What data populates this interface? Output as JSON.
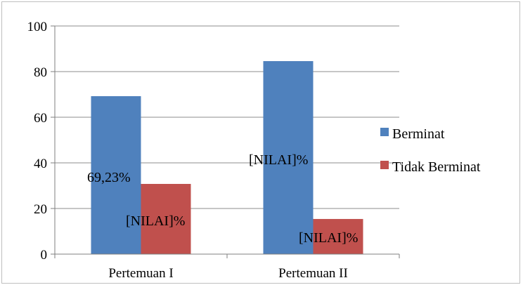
{
  "chart_data": {
    "type": "bar",
    "title": "",
    "xlabel": "",
    "ylabel": "",
    "categories": [
      "Pertemuan I",
      "Pertemuan II"
    ],
    "series": [
      {
        "name": "Berminat",
        "color": "#4f81bd",
        "values": [
          69.23,
          84.6
        ],
        "labels": [
          "69,23%",
          "[NILAI]%"
        ]
      },
      {
        "name": "Tidak Berminat",
        "color": "#c0504d",
        "values": [
          30.77,
          15.4
        ],
        "labels": [
          "[NILAI]%",
          "[NILAI]%"
        ]
      }
    ],
    "ylim": [
      0,
      100
    ],
    "yticks": [
      0,
      20,
      40,
      60,
      80,
      100
    ],
    "grid": true,
    "legend_position": "right"
  }
}
